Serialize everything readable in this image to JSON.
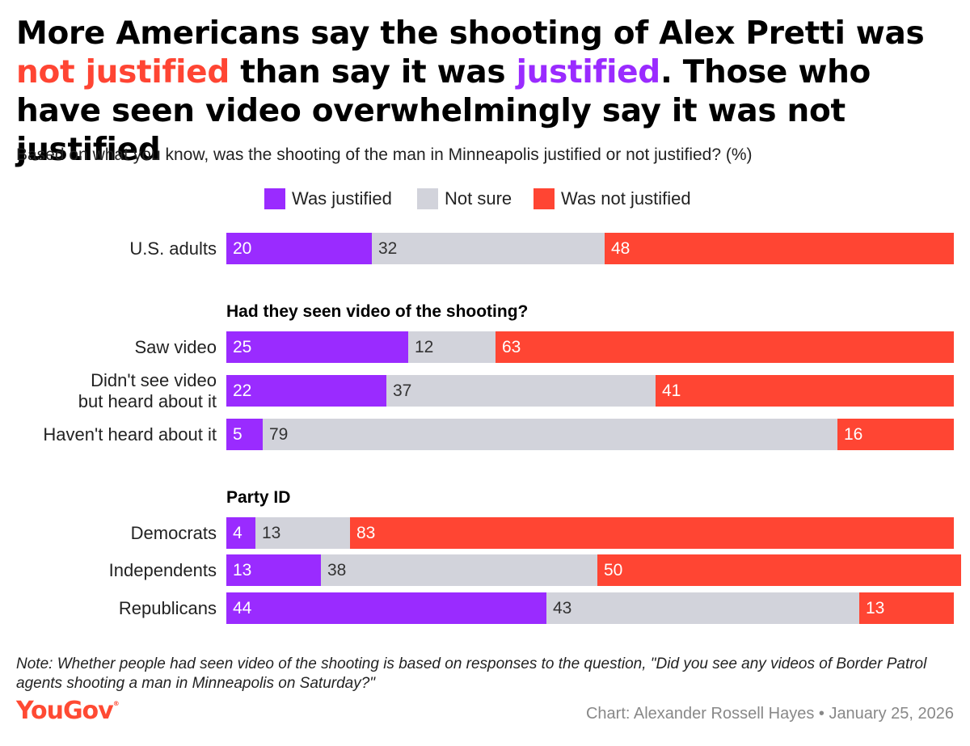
{
  "title": {
    "part1": "More Americans say the shooting of Alex Pretti was ",
    "highlight_not": "not justified",
    "part2": " than say it was ",
    "highlight_just": "justified",
    "part3": ". Those who have seen video overwhelmingly say it was not justified"
  },
  "subtitle": "Based on what you know, was the shooting of the man in Minneapolis justified or not justified? (%)",
  "colors": {
    "justified": "#9a2bff",
    "not_sure": "#d2d3db",
    "not_justified": "#ff4533"
  },
  "legend": [
    "Was justified",
    "Not sure",
    "Was not justified"
  ],
  "chart_data": {
    "type": "bar",
    "orientation": "horizontal",
    "stacked": true,
    "series_names": [
      "Was justified",
      "Not sure",
      "Was not justified"
    ],
    "xlim": [
      0,
      100
    ],
    "groups": [
      {
        "heading": "",
        "rows": [
          {
            "label": [
              "U.S. adults"
            ],
            "values": [
              20,
              32,
              48
            ]
          }
        ]
      },
      {
        "heading": "Had they seen video of the shooting?",
        "rows": [
          {
            "label": [
              "Saw video"
            ],
            "values": [
              25,
              12,
              63
            ]
          },
          {
            "label": [
              "Didn't see video",
              "but heard about it"
            ],
            "values": [
              22,
              37,
              41
            ]
          },
          {
            "label": [
              "Haven't heard about it"
            ],
            "values": [
              5,
              79,
              16
            ]
          }
        ]
      },
      {
        "heading": "Party ID",
        "rows": [
          {
            "label": [
              "Democrats"
            ],
            "values": [
              4,
              13,
              83
            ]
          },
          {
            "label": [
              "Independents"
            ],
            "values": [
              13,
              38,
              50
            ]
          },
          {
            "label": [
              "Republicans"
            ],
            "values": [
              44,
              43,
              13
            ]
          }
        ]
      }
    ]
  },
  "note": "Note: Whether people had seen video of the shooting is based on responses to the question, \"Did you see any videos of Border Patrol agents shooting a man in Minneapolis on Saturday?\"",
  "logo": {
    "text": "YouGov",
    "mark": "®"
  },
  "credit": "Chart: Alexander Rossell Hayes • January 25, 2026"
}
